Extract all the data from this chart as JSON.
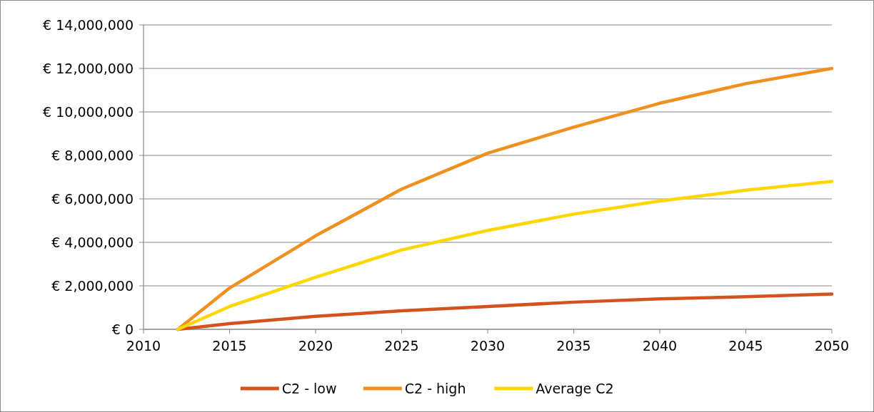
{
  "chart_data": {
    "type": "line",
    "x": [
      2012,
      2015,
      2020,
      2025,
      2030,
      2035,
      2040,
      2045,
      2050
    ],
    "series": [
      {
        "name": "C2 - low",
        "color": "#d4521e",
        "values": [
          0,
          260000,
          600000,
          850000,
          1050000,
          1250000,
          1400000,
          1500000,
          1620000
        ]
      },
      {
        "name": "C2 - high",
        "color": "#f0901e",
        "values": [
          0,
          1900000,
          4300000,
          6450000,
          8100000,
          9300000,
          10400000,
          11300000,
          12000000
        ]
      },
      {
        "name": "Average C2",
        "color": "#ffd700",
        "values": [
          0,
          1050000,
          2400000,
          3650000,
          4550000,
          5300000,
          5900000,
          6400000,
          6800000
        ]
      }
    ],
    "xlim": [
      2010,
      2050
    ],
    "xticks": [
      2010,
      2015,
      2020,
      2025,
      2030,
      2035,
      2040,
      2045,
      2050
    ],
    "ylim": [
      0,
      14000000
    ],
    "yticks": [
      {
        "value": 0,
        "label": "€ 0"
      },
      {
        "value": 2000000,
        "label": "€ 2,000,000"
      },
      {
        "value": 4000000,
        "label": "€ 4,000,000"
      },
      {
        "value": 6000000,
        "label": "€ 6,000,000"
      },
      {
        "value": 8000000,
        "label": "€ 8,000,000"
      },
      {
        "value": 10000000,
        "label": "€ 10,000,000"
      },
      {
        "value": 12000000,
        "label": "€ 12,000,000"
      },
      {
        "value": 14000000,
        "label": "€ 14,000,000"
      }
    ],
    "grid": "y",
    "legend": "bottom",
    "marker": "none",
    "line_style": "solid"
  }
}
